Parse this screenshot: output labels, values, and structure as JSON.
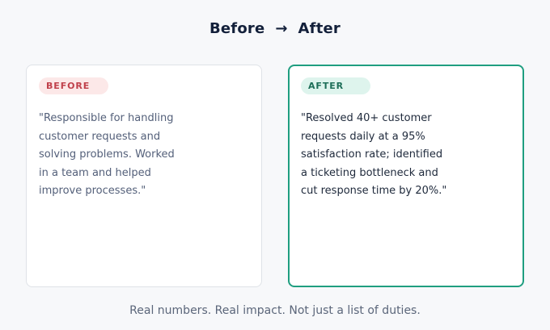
{
  "header": {
    "title": "Before  →  After"
  },
  "before_card": {
    "badge": "BEFORE",
    "lines": [
      "\"Responsible for handling",
      "customer requests and",
      "solving problems. Worked",
      "in a team and helped",
      "improve processes.\""
    ]
  },
  "after_card": {
    "badge": "AFTER",
    "lines": [
      "\"Resolved 40+ customer",
      "requests daily at a 95%",
      "satisfaction rate; identified",
      "a ticketing bottleneck and",
      "cut response time by 20%.\""
    ]
  },
  "footer": {
    "caption": "Real numbers. Real impact. Not just a list of duties."
  },
  "colors": {
    "background": "#f7f8fa",
    "before_badge_bg": "#fce8e8",
    "before_badge_text": "#c0404b",
    "after_border": "#1f9e80",
    "after_badge_bg": "#def4ed",
    "after_badge_text": "#1d6e58"
  }
}
